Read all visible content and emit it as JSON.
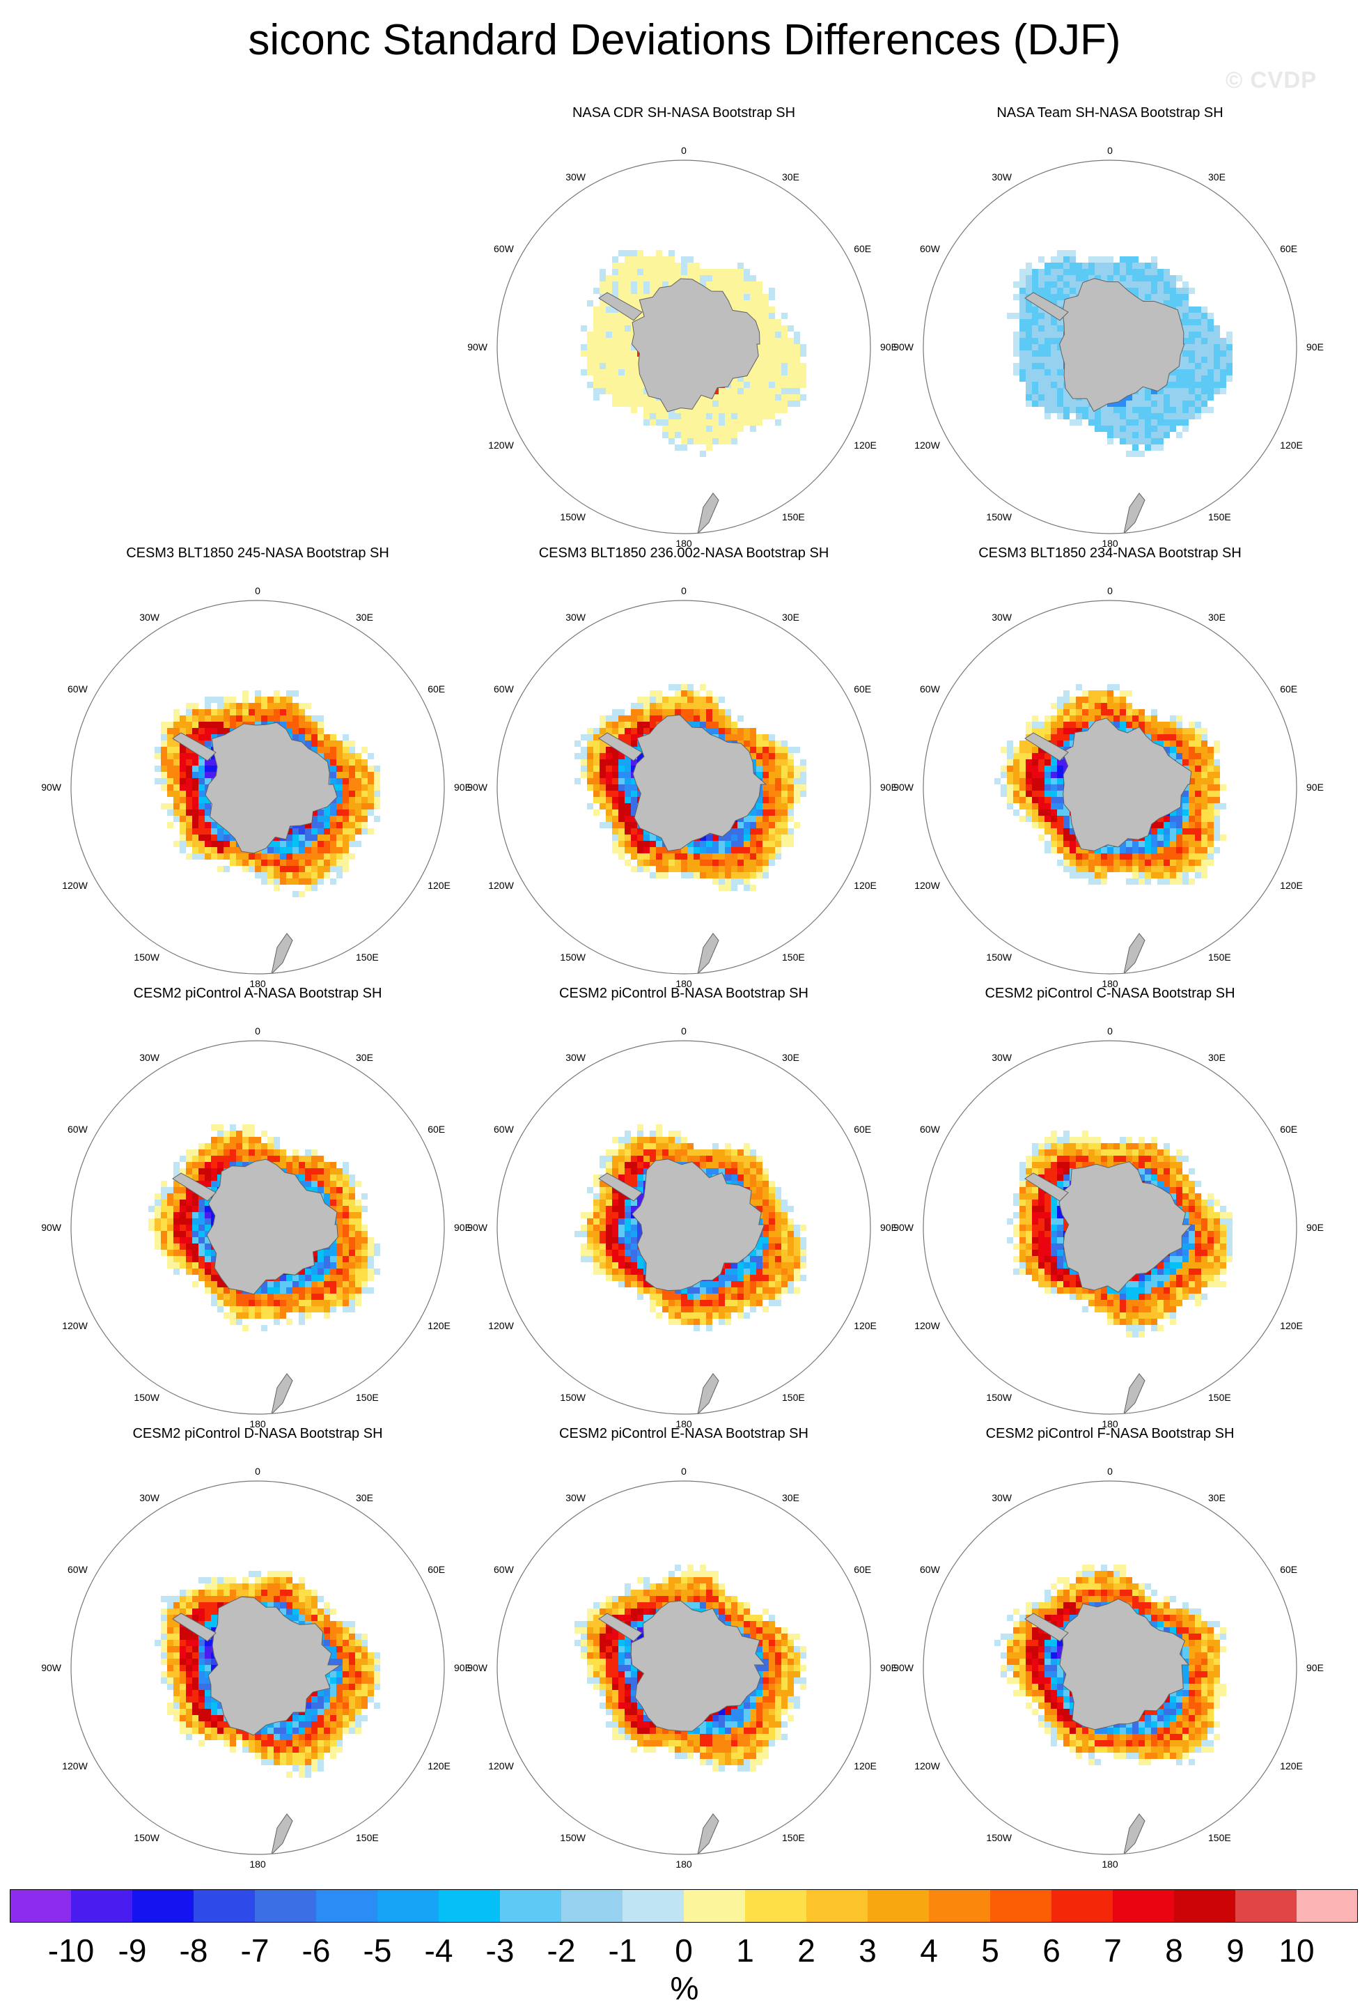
{
  "title": "siconc Standard Deviations Differences (DJF)",
  "watermark": "© CVDP",
  "map_labels": {
    "top": "0",
    "bottom": "180",
    "upper_left": "30W",
    "upper_right": "30E",
    "mid_upper_left": "60W",
    "mid_upper_right": "60E",
    "left": "90W",
    "right": "90E",
    "mid_lower_left": "120W",
    "mid_lower_right": "120E",
    "lower_left": "150W",
    "lower_right": "150E"
  },
  "panels": [
    {
      "title": "NASA CDR SH-NASA Bootstrap SH",
      "row": 0,
      "col": 1,
      "pattern": "obs-positive"
    },
    {
      "title": "NASA Team SH-NASA Bootstrap SH",
      "row": 0,
      "col": 2,
      "pattern": "obs-negative"
    },
    {
      "title": "CESM3 BLT1850 245-NASA Bootstrap SH",
      "row": 1,
      "col": 0,
      "pattern": "model"
    },
    {
      "title": "CESM3 BLT1850 236.002-NASA Bootstrap SH",
      "row": 1,
      "col": 1,
      "pattern": "model"
    },
    {
      "title": "CESM3 BLT1850 234-NASA Bootstrap SH",
      "row": 1,
      "col": 2,
      "pattern": "model"
    },
    {
      "title": "CESM2 piControl A-NASA Bootstrap SH",
      "row": 2,
      "col": 0,
      "pattern": "model"
    },
    {
      "title": "CESM2 piControl B-NASA Bootstrap SH",
      "row": 2,
      "col": 1,
      "pattern": "model"
    },
    {
      "title": "CESM2 piControl C-NASA Bootstrap SH",
      "row": 2,
      "col": 2,
      "pattern": "model"
    },
    {
      "title": "CESM2 piControl D-NASA Bootstrap SH",
      "row": 3,
      "col": 0,
      "pattern": "model"
    },
    {
      "title": "CESM2 piControl E-NASA Bootstrap SH",
      "row": 3,
      "col": 1,
      "pattern": "model"
    },
    {
      "title": "CESM2 piControl F-NASA Bootstrap SH",
      "row": 3,
      "col": 2,
      "pattern": "model"
    }
  ],
  "colorbar": {
    "units": "%",
    "tick_labels": [
      "-10",
      "-9",
      "-8",
      "-7",
      "-6",
      "-5",
      "-4",
      "-3",
      "-2",
      "-1",
      "0",
      "1",
      "2",
      "3",
      "4",
      "5",
      "6",
      "7",
      "8",
      "9",
      "10"
    ],
    "colors": [
      "#8d2cee",
      "#4a1cf0",
      "#1414f0",
      "#2e4ae8",
      "#3a6fe6",
      "#2a8cf4",
      "#16a4f7",
      "#04c0f7",
      "#5ccaf5",
      "#96d2f0",
      "#bfe4f4",
      "#fdf59c",
      "#fde047",
      "#fcc42a",
      "#f9a710",
      "#fb880d",
      "#fb5e05",
      "#f42809",
      "#ea0410",
      "#cc0406",
      "#e04646",
      "#fdb4b4"
    ]
  },
  "colors": {
    "land": "#bebebe",
    "land_edge": "#606060",
    "ring": "#777777"
  }
}
